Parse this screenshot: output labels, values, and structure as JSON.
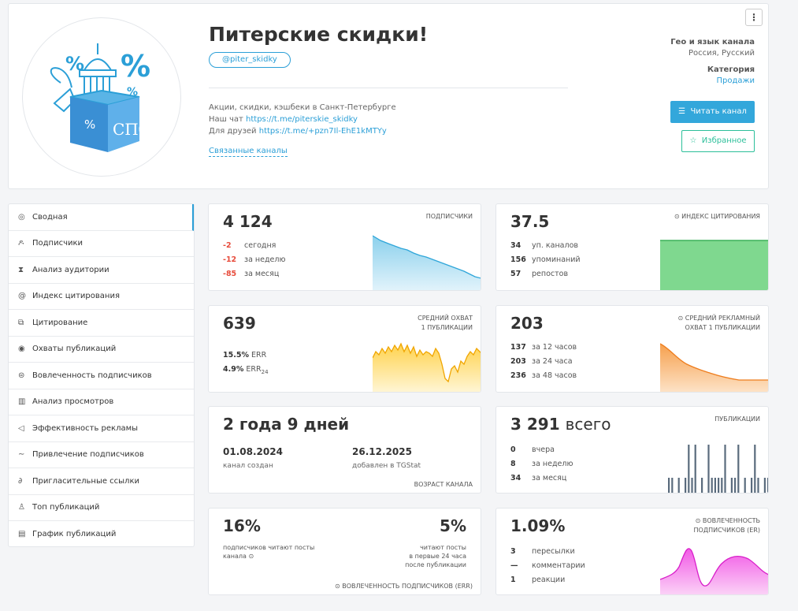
{
  "channel": {
    "title": "Питерские скидки!",
    "handle": "@piter_skidky",
    "desc_line1": "Акции, скидки, кэшбеки в Санкт-Петербурге",
    "chat_label": "Наш чат",
    "chat_link": "https://t.me/piterskie_skidky",
    "friends_label": "Для друзей",
    "friends_link": "https://t.me/+pzn7Il-EhE1kMTYy",
    "related": "Связанные каналы",
    "menu": "⋮",
    "geo_label": "Гео и язык канала",
    "geo_value": "Россия, Русский",
    "category_label": "Категория",
    "category_value": "Продажи",
    "read_button": "Читать канал",
    "fav_button": "Избранное",
    "logo": {
      "city_text": "СПб",
      "percent": "%"
    }
  },
  "sidebar": {
    "items": [
      {
        "icon": "dashboard-icon",
        "glyph": "◎",
        "label": "Сводная"
      },
      {
        "icon": "users-icon",
        "glyph": "ዶ",
        "label": "Подписчики"
      },
      {
        "icon": "hourglass-icon",
        "glyph": "⧗",
        "label": "Анализ аудитории"
      },
      {
        "icon": "at-icon",
        "glyph": "@",
        "label": "Индекс цитирования"
      },
      {
        "icon": "quote-icon",
        "glyph": "⧉",
        "label": "Цитирование"
      },
      {
        "icon": "eye-icon",
        "glyph": "◉",
        "label": "Охваты публикаций"
      },
      {
        "icon": "engagement-icon",
        "glyph": "⊜",
        "label": "Вовлеченность подписчиков"
      },
      {
        "icon": "bar-chart-icon",
        "glyph": "▥",
        "label": "Анализ просмотров"
      },
      {
        "icon": "megaphone-icon",
        "glyph": "◁",
        "label": "Эффективность рекламы"
      },
      {
        "icon": "trend-icon",
        "glyph": "∼",
        "label": "Привлечение подписчиков"
      },
      {
        "icon": "link-icon",
        "glyph": "∂",
        "label": "Пригласительные ссылки"
      },
      {
        "icon": "thumbs-up-icon",
        "glyph": "♙",
        "label": "Топ публикаций"
      },
      {
        "icon": "calendar-icon",
        "glyph": "▤",
        "label": "График публикаций"
      }
    ]
  },
  "cards": {
    "subscribers": {
      "value": "4 124",
      "label": "ПОДПИСЧИКИ",
      "rows": [
        {
          "n": "-2",
          "t": "сегодня"
        },
        {
          "n": "-12",
          "t": "за неделю"
        },
        {
          "n": "-85",
          "t": "за месяц"
        }
      ]
    },
    "citation": {
      "value": "37.5",
      "label": "ИНДЕКС ЦИТИРОВАНИЯ",
      "rows": [
        {
          "n": "34",
          "t": "уп. каналов"
        },
        {
          "n": "156",
          "t": "упоминаний"
        },
        {
          "n": "57",
          "t": "репостов"
        }
      ]
    },
    "reach": {
      "value": "639",
      "label1": "СРЕДНИЙ ОХВАТ",
      "label2": "1 ПУБЛИКАЦИИ",
      "rows": [
        {
          "n": "15.5%",
          "t": "ERR"
        },
        {
          "n": "4.9%",
          "t": "ERR",
          "sub": "24"
        }
      ]
    },
    "ad_reach": {
      "value": "203",
      "label1": "СРЕДНИЙ РЕКЛАМНЫЙ",
      "label2": "ОХВАТ 1 ПУБЛИКАЦИИ",
      "rows": [
        {
          "n": "137",
          "t": "за 12 часов"
        },
        {
          "n": "203",
          "t": "за 24 часа"
        },
        {
          "n": "236",
          "t": "за 48 часов"
        }
      ]
    },
    "age": {
      "value": "2 года 9 дней",
      "created_date": "01.08.2024",
      "created_label": "канал создан",
      "added_date": "26.12.2025",
      "added_label": "добавлен в TGStat",
      "label": "ВОЗРАСТ КАНАЛА"
    },
    "posts": {
      "value": "3 291",
      "value_suffix": "всего",
      "label": "ПУБЛИКАЦИИ",
      "rows": [
        {
          "n": "0",
          "t": "вчера"
        },
        {
          "n": "8",
          "t": "за неделю"
        },
        {
          "n": "34",
          "t": "за месяц"
        }
      ]
    },
    "err": {
      "left_value": "16%",
      "left_text1": "подписчиков читают посты",
      "left_text2": "канала",
      "right_value": "5%",
      "right_text1": "читают посты",
      "right_text2": "в первые 24 часа",
      "right_text3": "после публикации",
      "label": "ВОВЛЕЧЕННОСТЬ ПОДПИСЧИКОВ (ERR)"
    },
    "er": {
      "value": "1.09%",
      "label1": "ВОВЛЕЧЕННОСТЬ",
      "label2": "ПОДПИСЧИКОВ (ER)",
      "rows": [
        {
          "n": "3",
          "t": "пересылки"
        },
        {
          "n": "—",
          "t": "комментарии"
        },
        {
          "n": "1",
          "t": "реакции"
        }
      ]
    }
  },
  "colors": {
    "accent": "#2b9fd7",
    "green": "#2cbf9a",
    "negative": "#e74c3c"
  }
}
